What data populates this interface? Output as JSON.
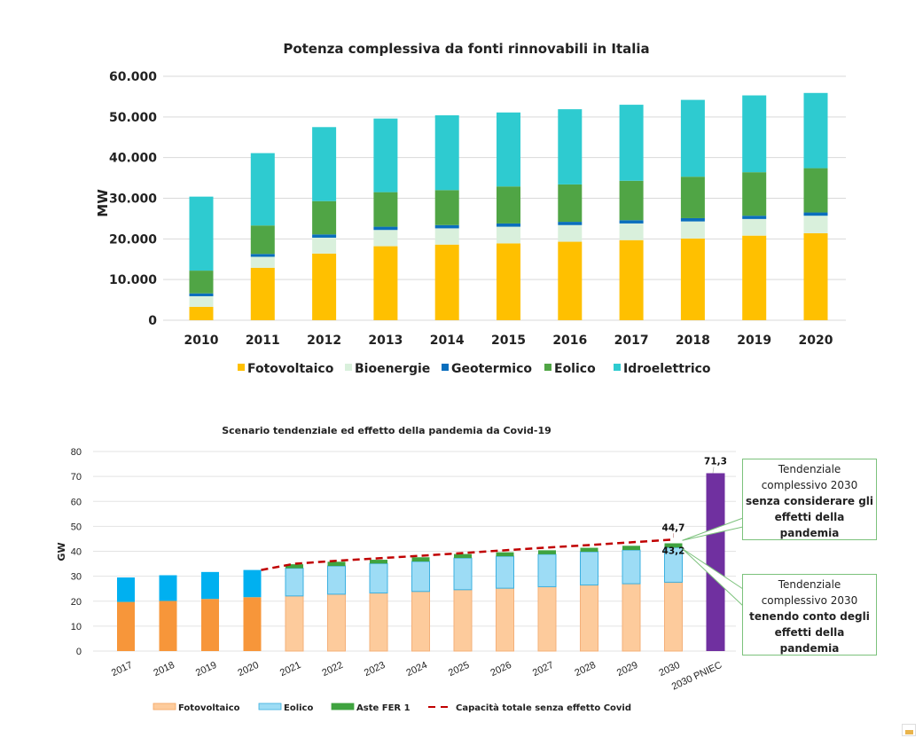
{
  "chart_data": [
    {
      "type": "bar",
      "stacked": true,
      "title": "Potenza complessiva da fonti rinnovabili in Italia",
      "xlabel": "",
      "ylabel": "MW",
      "ylim": [
        0,
        60000
      ],
      "yticks": [
        0,
        10000,
        20000,
        30000,
        40000,
        50000,
        60000
      ],
      "ytick_labels": [
        "0",
        "10.000",
        "20.000",
        "30.000",
        "40.000",
        "50.000",
        "60.000"
      ],
      "grid": true,
      "legend_position": "bottom",
      "categories": [
        "2010",
        "2011",
        "2012",
        "2013",
        "2014",
        "2015",
        "2016",
        "2017",
        "2018",
        "2019",
        "2020"
      ],
      "series": [
        {
          "name": "Fotovoltaico",
          "color": "#ffc000",
          "values": [
            3300,
            12900,
            16400,
            18200,
            18600,
            18900,
            19300,
            19700,
            20100,
            20800,
            21400
          ]
        },
        {
          "name": "Bioenergie",
          "color": "#d9f0dc",
          "values": [
            2600,
            2700,
            3900,
            4000,
            4000,
            4100,
            4100,
            4100,
            4200,
            4100,
            4300
          ]
        },
        {
          "name": "Geotermico",
          "color": "#0a6ebd",
          "values": [
            700,
            700,
            800,
            800,
            800,
            800,
            800,
            800,
            800,
            800,
            800
          ]
        },
        {
          "name": "Eolico",
          "color": "#50a545",
          "values": [
            5600,
            7000,
            8200,
            8500,
            8600,
            9100,
            9200,
            9700,
            10200,
            10700,
            10900
          ]
        },
        {
          "name": "Idroelettrico",
          "color": "#2ecbd0",
          "values": [
            18200,
            17800,
            18200,
            18100,
            18400,
            18200,
            18500,
            18700,
            18900,
            18900,
            18500
          ]
        }
      ]
    },
    {
      "type": "bar",
      "stacked": true,
      "title": "Scenario tendenziale ed effetto della pandemia da Covid-19",
      "xlabel": "",
      "ylabel": "GW",
      "ylim": [
        0,
        80
      ],
      "yticks": [
        0,
        10,
        20,
        30,
        40,
        50,
        60,
        70,
        80
      ],
      "ytick_labels": [
        "0",
        "10",
        "20",
        "30",
        "40",
        "50",
        "60",
        "70",
        "80"
      ],
      "grid": true,
      "legend_position": "bottom",
      "categories": [
        "2017",
        "2018",
        "2019",
        "2020",
        "2021",
        "2022",
        "2023",
        "2024",
        "2025",
        "2026",
        "2027",
        "2028",
        "2029",
        "2030",
        "2030 PNIEC"
      ],
      "historical_categories": [
        "2017",
        "2018",
        "2019",
        "2020"
      ],
      "series": [
        {
          "name": "Fotovoltaico",
          "color": "#fdcb9c",
          "historical_color": "#f7963a",
          "values": [
            19.7,
            20.1,
            20.9,
            21.6,
            22.1,
            22.8,
            23.3,
            23.9,
            24.6,
            25.2,
            25.8,
            26.5,
            27.0,
            27.6,
            null
          ]
        },
        {
          "name": "Eolico",
          "color": "#9ddcf5",
          "historical_color": "#00b0f0",
          "values": [
            9.8,
            10.3,
            10.8,
            10.9,
            11.1,
            11.3,
            11.8,
            12.0,
            12.7,
            12.8,
            13.0,
            13.3,
            13.5,
            13.9,
            null
          ]
        },
        {
          "name": "Aste FER 1",
          "color": "#3fa33f",
          "values": [
            null,
            null,
            null,
            null,
            1.6,
            1.7,
            1.5,
            1.7,
            1.6,
            1.6,
            1.6,
            1.6,
            1.7,
            1.7,
            null
          ]
        },
        {
          "name": "2030 PNIEC",
          "color": "#7030a0",
          "in_legend": false,
          "values": [
            null,
            null,
            null,
            null,
            null,
            null,
            null,
            null,
            null,
            null,
            null,
            null,
            null,
            null,
            71.3
          ]
        }
      ],
      "line_series": {
        "name": "Capacità totale senza effetto Covid",
        "color": "#c00000",
        "style": "dashed",
        "x": [
          "2020",
          "2021",
          "2022",
          "2023",
          "2024",
          "2025",
          "2026",
          "2027",
          "2028",
          "2029",
          "2030"
        ],
        "values": [
          32.5,
          35.0,
          36.2,
          37.2,
          38.2,
          39.3,
          40.4,
          41.5,
          42.5,
          43.6,
          44.7
        ]
      },
      "data_labels": [
        {
          "category": "2030",
          "value": 44.7,
          "text": "44,7"
        },
        {
          "category": "2030",
          "value": 43.2,
          "text": "43,2"
        },
        {
          "category": "2030 PNIEC",
          "value": 71.3,
          "text": "71,3"
        }
      ],
      "annotations": [
        {
          "id": "no_covid",
          "target": "44,7",
          "lines": [
            {
              "text": "Tendenziale",
              "bold": false
            },
            {
              "text": "complessivo 2030",
              "bold": false
            },
            {
              "text": "senza considerare gli",
              "bold": true
            },
            {
              "text": "effetti della",
              "bold": true
            },
            {
              "text": "pandemia",
              "bold": true
            }
          ]
        },
        {
          "id": "with_covid",
          "target": "43,2",
          "lines": [
            {
              "text": "Tendenziale",
              "bold": false
            },
            {
              "text": "complessivo 2030",
              "bold": false
            },
            {
              "text": "tenendo conto degli",
              "bold": true
            },
            {
              "text": "effetti della",
              "bold": true
            },
            {
              "text": "pandemia",
              "bold": true
            }
          ]
        }
      ],
      "legend": [
        {
          "name": "Fotovoltaico",
          "kind": "box",
          "color": "#fdcb9c",
          "border": "#f4a460"
        },
        {
          "name": "Eolico",
          "kind": "box",
          "color": "#9ddcf5",
          "border": "#3cb0e0"
        },
        {
          "name": "Aste FER 1",
          "kind": "box",
          "color": "#3fa33f",
          "border": "#3fa33f"
        },
        {
          "name": "Capacità totale senza effetto Covid",
          "kind": "dash",
          "color": "#c00000"
        }
      ]
    }
  ]
}
